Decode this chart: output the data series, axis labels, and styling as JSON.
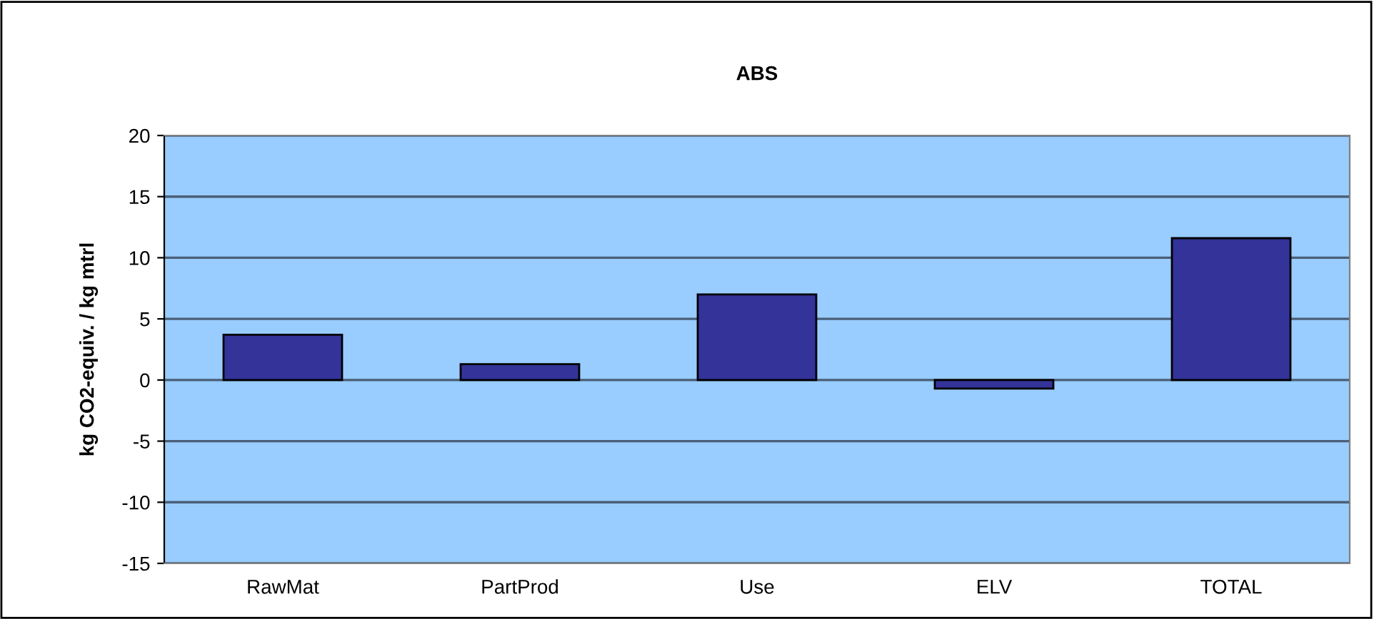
{
  "chart_data": {
    "type": "bar",
    "title": "ABS",
    "ylabel": "kg CO2-equiv. / kg mtrl",
    "categories": [
      "RawMat",
      "PartProd",
      "Use",
      "ELV",
      "TOTAL"
    ],
    "values": [
      3.7,
      1.3,
      7.0,
      -0.7,
      11.6
    ],
    "color": "#333399",
    "ylim": [
      -15,
      20
    ],
    "yticks": [
      -15,
      -10,
      -5,
      0,
      5,
      10,
      15,
      20
    ],
    "grid": "y",
    "legend": false
  }
}
